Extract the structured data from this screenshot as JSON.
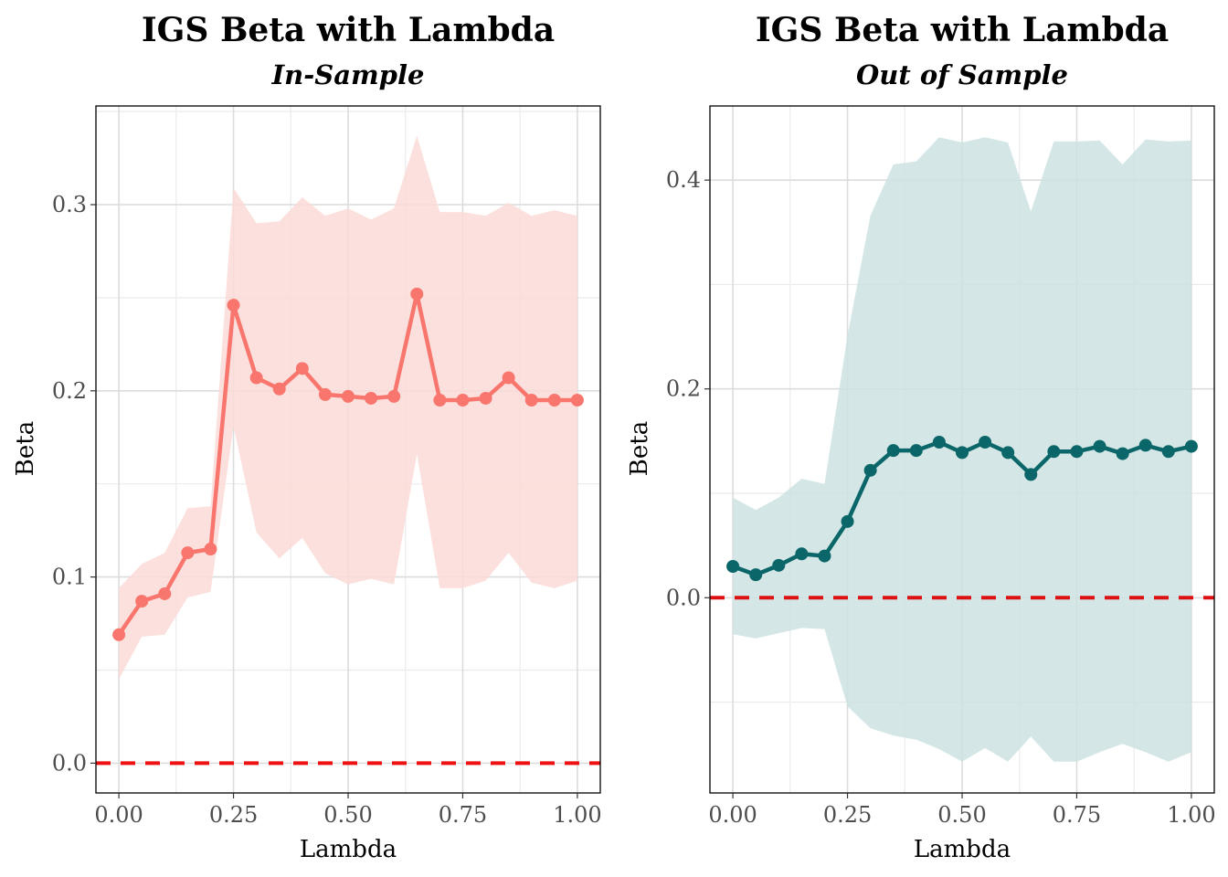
{
  "chart_data": [
    {
      "type": "line",
      "title": "IGS Beta with Lambda",
      "subtitle": "In-Sample",
      "xlabel": "Lambda",
      "ylabel": "Beta",
      "color": "#F8766D",
      "band_color": "#FCDAD7",
      "xlim": [
        -0.05,
        1.05
      ],
      "ylim": [
        -0.016,
        0.353
      ],
      "x_ticks": [
        0,
        0.25,
        0.5,
        0.75,
        1
      ],
      "x_tick_labels": [
        "0.00",
        "0.25",
        "0.50",
        "0.75",
        "1.00"
      ],
      "y_ticks": [
        0,
        0.1,
        0.2,
        0.3
      ],
      "y_tick_labels": [
        "0.0",
        "0.1",
        "0.2",
        "0.3"
      ],
      "reference_line": {
        "y": 0,
        "color": "#EE1111",
        "style": "dashed"
      },
      "grid": true,
      "x": [
        0,
        0.05,
        0.1,
        0.15,
        0.2,
        0.25,
        0.3,
        0.35,
        0.4,
        0.45,
        0.5,
        0.55,
        0.6,
        0.65,
        0.7,
        0.75,
        0.8,
        0.85,
        0.9,
        0.95,
        1.0
      ],
      "series": [
        {
          "values": [
            0.069,
            0.087,
            0.091,
            0.113,
            0.115,
            0.246,
            0.207,
            0.201,
            0.212,
            0.198,
            0.197,
            0.196,
            0.197,
            0.252,
            0.195,
            0.195,
            0.196,
            0.207,
            0.195,
            0.195,
            0.195
          ]
        }
      ],
      "band_upper": [
        0.094,
        0.107,
        0.113,
        0.137,
        0.138,
        0.309,
        0.29,
        0.291,
        0.304,
        0.294,
        0.298,
        0.292,
        0.298,
        0.337,
        0.296,
        0.296,
        0.294,
        0.301,
        0.294,
        0.297,
        0.294
      ],
      "band_lower": [
        0.045,
        0.068,
        0.069,
        0.089,
        0.092,
        0.181,
        0.124,
        0.11,
        0.121,
        0.102,
        0.096,
        0.099,
        0.096,
        0.166,
        0.094,
        0.094,
        0.098,
        0.113,
        0.097,
        0.094,
        0.098
      ]
    },
    {
      "type": "line",
      "title": "IGS Beta with Lambda",
      "subtitle": "Out of Sample",
      "xlabel": "Lambda",
      "ylabel": "Beta",
      "color": "#0A6668",
      "band_color": "#CDE2E2",
      "xlim": [
        -0.05,
        1.05
      ],
      "ylim": [
        -0.187,
        0.471
      ],
      "x_ticks": [
        0,
        0.25,
        0.5,
        0.75,
        1
      ],
      "x_tick_labels": [
        "0.00",
        "0.25",
        "0.50",
        "0.75",
        "1.00"
      ],
      "y_ticks": [
        0,
        0.2,
        0.4
      ],
      "y_tick_labels": [
        "0.0",
        "0.2",
        "0.4"
      ],
      "reference_line": {
        "y": 0,
        "color": "#DD1111",
        "style": "dashed"
      },
      "grid": true,
      "x": [
        0,
        0.05,
        0.1,
        0.15,
        0.2,
        0.25,
        0.3,
        0.35,
        0.4,
        0.45,
        0.5,
        0.55,
        0.6,
        0.65,
        0.7,
        0.75,
        0.8,
        0.85,
        0.9,
        0.95,
        1.0
      ],
      "series": [
        {
          "values": [
            0.03,
            0.022,
            0.031,
            0.042,
            0.04,
            0.073,
            0.122,
            0.141,
            0.141,
            0.149,
            0.139,
            0.149,
            0.139,
            0.118,
            0.14,
            0.14,
            0.145,
            0.138,
            0.146,
            0.14,
            0.145
          ]
        }
      ],
      "band_upper": [
        0.096,
        0.084,
        0.096,
        0.114,
        0.109,
        0.251,
        0.366,
        0.415,
        0.418,
        0.441,
        0.436,
        0.441,
        0.436,
        0.37,
        0.437,
        0.437,
        0.438,
        0.415,
        0.439,
        0.437,
        0.438
      ],
      "band_lower": [
        -0.035,
        -0.039,
        -0.034,
        -0.029,
        -0.03,
        -0.104,
        -0.125,
        -0.132,
        -0.136,
        -0.145,
        -0.157,
        -0.144,
        -0.157,
        -0.133,
        -0.157,
        -0.157,
        -0.148,
        -0.14,
        -0.148,
        -0.157,
        -0.148
      ]
    }
  ]
}
